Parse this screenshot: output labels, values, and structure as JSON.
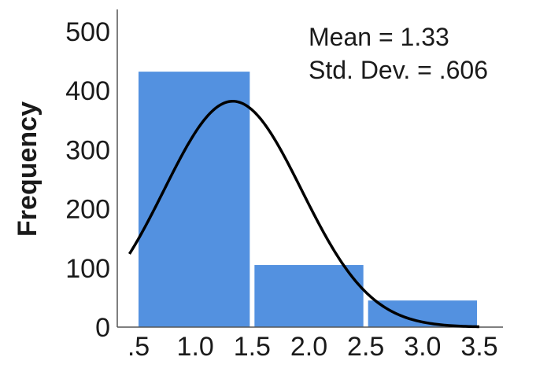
{
  "chart_data": {
    "type": "bar",
    "subtype": "histogram",
    "ylabel": "Frequency",
    "xlabel": "",
    "title": "",
    "bins": [
      {
        "start": 0.5,
        "end": 1.5,
        "count": 432
      },
      {
        "start": 1.5,
        "end": 2.5,
        "count": 105
      },
      {
        "start": 2.5,
        "end": 3.5,
        "count": 45
      }
    ],
    "x_ticks": [
      0.5,
      1.0,
      1.5,
      2.0,
      2.5,
      3.0,
      3.5
    ],
    "x_tick_labels": [
      ".5",
      "1.0",
      "1.5",
      "2.0",
      "2.5",
      "3.0",
      "3.5"
    ],
    "y_ticks": [
      0,
      100,
      200,
      300,
      400,
      500
    ],
    "y_tick_labels": [
      "0",
      "100",
      "200",
      "300",
      "400",
      "500"
    ],
    "xlim": [
      0.5,
      3.5
    ],
    "ylim": [
      0,
      500
    ],
    "normal_curve": {
      "mean": 1.33,
      "std_dev": 0.606,
      "peak": 382
    },
    "stats": {
      "mean_label": "Mean = 1.33",
      "std_dev_label": "Std. Dev. = .606"
    },
    "grid": false,
    "colors": {
      "bar_fill": "#5391E0",
      "curve": "#000000",
      "axis": "#555555"
    }
  }
}
